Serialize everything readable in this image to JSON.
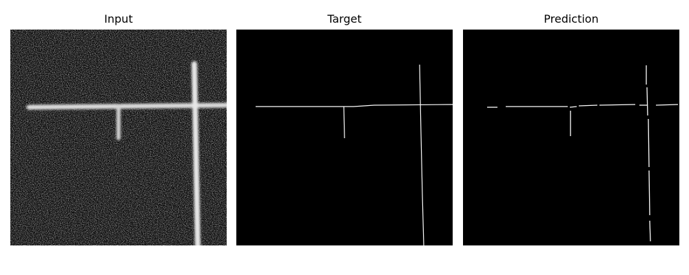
{
  "panels": [
    {
      "title": "Input"
    },
    {
      "title": "Target"
    },
    {
      "title": "Prediction"
    }
  ],
  "colors": {
    "background": "#ffffff",
    "image_background": "#000000",
    "line": "#ffffff"
  }
}
